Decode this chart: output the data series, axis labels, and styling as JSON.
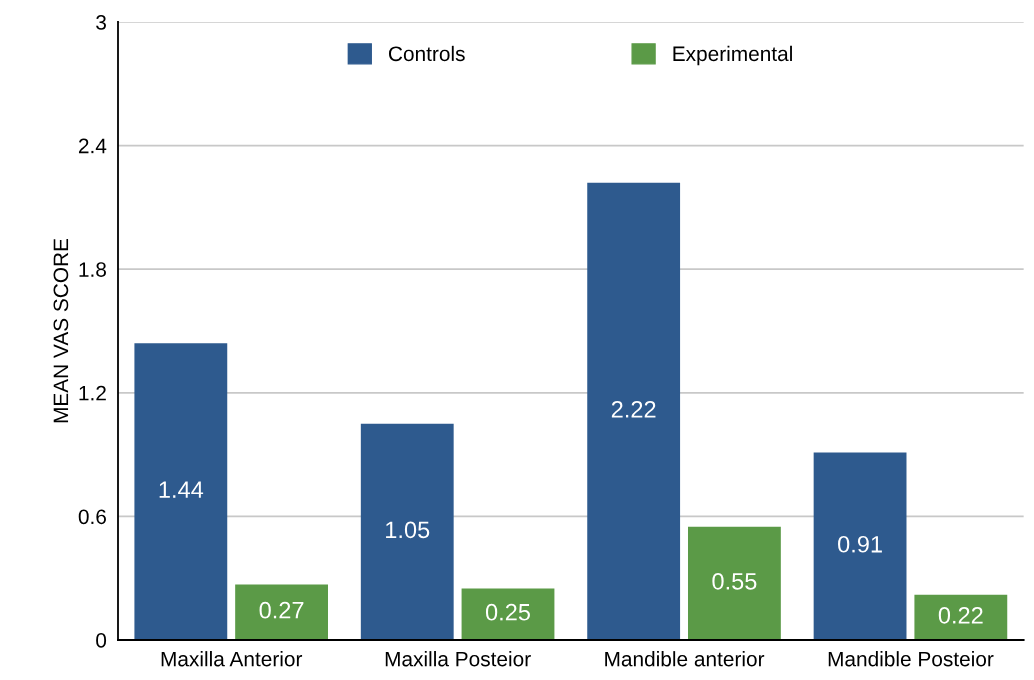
{
  "chart_data": {
    "type": "bar",
    "ylabel": "MEAN VAS SCORE",
    "categories": [
      "Maxilla Anterior",
      "Maxilla Posteior",
      "Mandible anterior",
      "Mandible Posteior"
    ],
    "series": [
      {
        "name": "Controls",
        "color": "#2e5a8e",
        "values": [
          1.44,
          1.05,
          2.22,
          0.91
        ]
      },
      {
        "name": "Experimental",
        "color": "#5b9a47",
        "values": [
          0.27,
          0.25,
          0.55,
          0.22
        ]
      }
    ],
    "ylim": [
      0,
      3
    ],
    "yticks": [
      0,
      0.6,
      1.2,
      1.8,
      2.4,
      3
    ],
    "grid": "y",
    "legend": "top",
    "data_labels": true
  }
}
